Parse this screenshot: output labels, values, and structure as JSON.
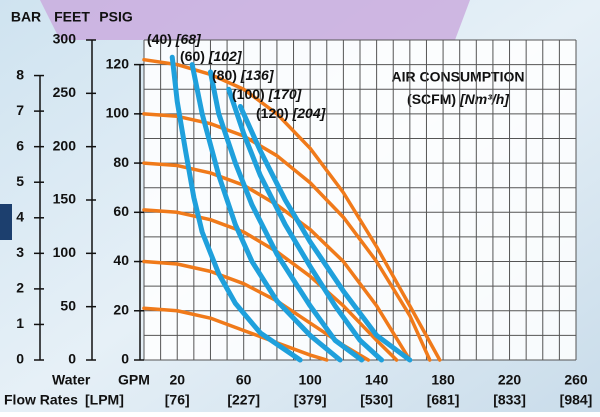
{
  "chart_data": {
    "type": "line",
    "annotations": {
      "title": "AIR CONSUMPTION",
      "unit": "(SCFM)",
      "unit_metric": "[Nm³/h]"
    },
    "y_axes": [
      {
        "label": "BAR",
        "ylim": [
          0,
          9
        ],
        "yticks": [
          0,
          1,
          2,
          3,
          4,
          5,
          6,
          7,
          8
        ]
      },
      {
        "label": "FEET",
        "ylim": [
          0,
          300
        ],
        "yticks": [
          0,
          50,
          100,
          150,
          200,
          250,
          300
        ]
      },
      {
        "label": "PSIG",
        "ylim": [
          0,
          130
        ],
        "yticks": [
          0,
          20,
          40,
          60,
          80,
          100,
          120
        ]
      }
    ],
    "x_axis": {
      "label": "Water",
      "label2": "Flow Rates",
      "unit": "GPM",
      "unit_metric": "[LPM]",
      "xlim": [
        0,
        260
      ],
      "xticks": [
        20,
        60,
        100,
        140,
        180,
        220,
        260
      ],
      "xtick_labels_metric": [
        "[76]",
        "[227]",
        "[379]",
        "[530]",
        "[681]",
        "[833]",
        "[984]"
      ]
    },
    "grid": true,
    "x_grid": [
      0,
      10,
      20,
      30,
      40,
      50,
      60,
      70,
      80,
      90,
      100,
      110,
      120,
      130,
      140,
      150,
      160,
      170,
      180,
      190,
      200,
      210,
      220,
      230,
      240,
      250,
      260
    ],
    "y_grid": [
      0,
      10,
      20,
      30,
      40,
      50,
      60,
      70,
      80,
      90,
      100,
      110,
      120,
      130
    ],
    "series": [
      {
        "color": "#f07a1a",
        "x": [
          0,
          20,
          40,
          60,
          80,
          100,
          120,
          140,
          160,
          178
        ],
        "values": [
          122,
          120,
          116,
          110,
          100,
          86,
          68,
          46,
          22,
          0
        ]
      },
      {
        "color": "#f07a1a",
        "x": [
          0,
          20,
          40,
          60,
          80,
          100,
          120,
          140,
          160,
          172
        ],
        "values": [
          100,
          99,
          96,
          91,
          83,
          72,
          58,
          40,
          18,
          0
        ]
      },
      {
        "color": "#f07a1a",
        "x": [
          0,
          20,
          40,
          60,
          80,
          100,
          120,
          140,
          160
        ],
        "values": [
          80,
          79,
          76,
          71,
          63,
          53,
          40,
          22,
          0
        ]
      },
      {
        "color": "#f07a1a",
        "x": [
          0,
          20,
          40,
          60,
          80,
          100,
          120,
          140,
          152
        ],
        "values": [
          61,
          60,
          57,
          52,
          44,
          34,
          22,
          8,
          0
        ]
      },
      {
        "color": "#f07a1a",
        "x": [
          0,
          20,
          40,
          60,
          80,
          100,
          120,
          135
        ],
        "values": [
          40,
          39,
          36,
          31,
          24,
          15,
          6,
          0
        ]
      },
      {
        "color": "#f07a1a",
        "x": [
          0,
          20,
          40,
          60,
          80,
          100,
          110
        ],
        "values": [
          21,
          20,
          17,
          12,
          7,
          2,
          0
        ]
      },
      {
        "name": "(40)",
        "name_metric": "[68]",
        "color": "#1fa0dc",
        "x": [
          17,
          20,
          25,
          30,
          35,
          45,
          55,
          70,
          94
        ],
        "values": [
          123,
          105,
          85,
          66,
          52,
          35,
          23,
          11,
          0
        ]
      },
      {
        "name": "(60)",
        "name_metric": "[102]",
        "color": "#1fa0dc",
        "x": [
          29,
          35,
          45,
          55,
          65,
          80,
          100,
          118
        ],
        "values": [
          120,
          100,
          75,
          55,
          40,
          24,
          10,
          0
        ]
      },
      {
        "name": "(80)",
        "name_metric": "[136]",
        "color": "#1fa0dc",
        "x": [
          40,
          45,
          55,
          65,
          80,
          100,
          115,
          131
        ],
        "values": [
          117,
          100,
          80,
          63,
          43,
          22,
          8,
          0
        ]
      },
      {
        "name": "(100)",
        "name_metric": "[170]",
        "color": "#1fa0dc",
        "x": [
          51,
          60,
          70,
          85,
          100,
          115,
          130,
          143
        ],
        "values": [
          110,
          92,
          75,
          55,
          38,
          22,
          8,
          0
        ]
      },
      {
        "name": "(120)",
        "name_metric": "[204]",
        "color": "#1fa0dc",
        "x": [
          58,
          70,
          85,
          100,
          120,
          140,
          160
        ],
        "values": [
          103,
          85,
          65,
          48,
          28,
          10,
          0
        ]
      }
    ]
  }
}
